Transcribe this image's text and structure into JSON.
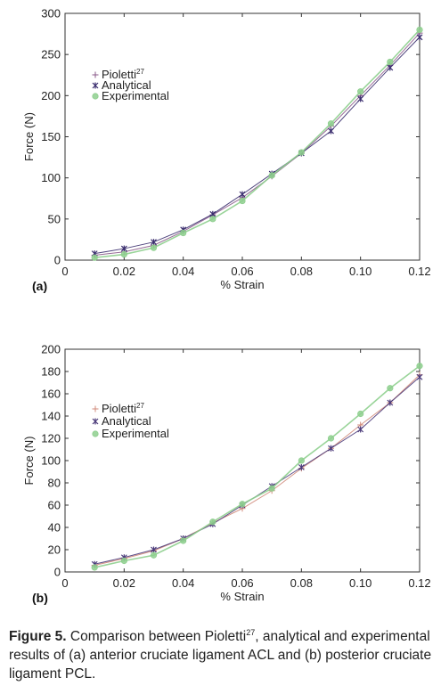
{
  "chart_data": [
    {
      "type": "line",
      "xlabel": "% Strain",
      "ylabel": "Force (N)",
      "xlim": [
        0,
        0.12
      ],
      "ylim": [
        0,
        300
      ],
      "x_ticks": [
        "0",
        "0.02",
        "0.04",
        "0.06",
        "0.08",
        "0.10",
        "0.12"
      ],
      "y_ticks": [
        "0",
        "50",
        "100",
        "150",
        "200",
        "250",
        "300"
      ],
      "panel_label": "(a)",
      "legend_position": "top-left",
      "grid": false,
      "series": [
        {
          "name": "Pioletti",
          "superscript": "27",
          "marker": "plus",
          "color": "#8a5a8a",
          "x": [
            0.01,
            0.02,
            0.03,
            0.04,
            0.05,
            0.06,
            0.07,
            0.08,
            0.09,
            0.1,
            0.11,
            0.12
          ],
          "y": [
            6,
            10,
            18,
            35,
            55,
            76,
            102,
            130,
            163,
            200,
            237,
            276
          ]
        },
        {
          "name": "Analytical",
          "superscript": "",
          "marker": "star",
          "color": "#3a2d6e",
          "x": [
            0.01,
            0.02,
            0.03,
            0.04,
            0.05,
            0.06,
            0.07,
            0.08,
            0.09,
            0.1,
            0.11,
            0.12
          ],
          "y": [
            8,
            14,
            22,
            37,
            56,
            80,
            105,
            130,
            157,
            196,
            234,
            271
          ]
        },
        {
          "name": "Experimental",
          "superscript": "",
          "marker": "circle",
          "color": "#8ecf8e",
          "x": [
            0.01,
            0.02,
            0.03,
            0.04,
            0.05,
            0.06,
            0.07,
            0.08,
            0.09,
            0.1,
            0.11,
            0.12
          ],
          "y": [
            3,
            7,
            15,
            33,
            50,
            72,
            103,
            131,
            166,
            205,
            241,
            280
          ]
        }
      ]
    },
    {
      "type": "line",
      "xlabel": "% Strain",
      "ylabel": "Force (N)",
      "xlim": [
        0,
        0.12
      ],
      "ylim": [
        0,
        200
      ],
      "x_ticks": [
        "0",
        "0.02",
        "0.04",
        "0.06",
        "0.08",
        "0.10",
        "0.12"
      ],
      "y_ticks": [
        "0",
        "20",
        "40",
        "60",
        "80",
        "100",
        "120",
        "140",
        "160",
        "180",
        "200"
      ],
      "panel_label": "(b)",
      "legend_position": "top-left",
      "grid": false,
      "series": [
        {
          "name": "Pioletti",
          "superscript": "27",
          "marker": "plus",
          "color": "#d08a7a",
          "x": [
            0.01,
            0.02,
            0.03,
            0.04,
            0.05,
            0.06,
            0.07,
            0.08,
            0.09,
            0.1,
            0.11,
            0.12
          ],
          "y": [
            6,
            12,
            19,
            30,
            44,
            57,
            73,
            93,
            111,
            132,
            152,
            177
          ]
        },
        {
          "name": "Analytical",
          "superscript": "",
          "marker": "star",
          "color": "#4a3a7a",
          "x": [
            0.01,
            0.02,
            0.03,
            0.04,
            0.05,
            0.06,
            0.07,
            0.08,
            0.09,
            0.1,
            0.11,
            0.12
          ],
          "y": [
            7,
            13,
            20,
            30,
            43,
            60,
            77,
            94,
            111,
            128,
            152,
            175
          ]
        },
        {
          "name": "Experimental",
          "superscript": "",
          "marker": "circle",
          "color": "#8ecf8e",
          "x": [
            0.01,
            0.02,
            0.03,
            0.04,
            0.05,
            0.06,
            0.07,
            0.08,
            0.09,
            0.1,
            0.11,
            0.12
          ],
          "y": [
            4,
            10,
            15,
            28,
            45,
            61,
            75,
            100,
            120,
            142,
            165,
            185
          ]
        }
      ]
    }
  ],
  "caption": {
    "label": "Figure 5.",
    "text_part1": " Comparison between Pioletti",
    "sup": "27",
    "text_part2": ", analytical and experimental results of (a) anterior cruciate ligament ACL and (b) posterior cruciate ligament PCL."
  }
}
